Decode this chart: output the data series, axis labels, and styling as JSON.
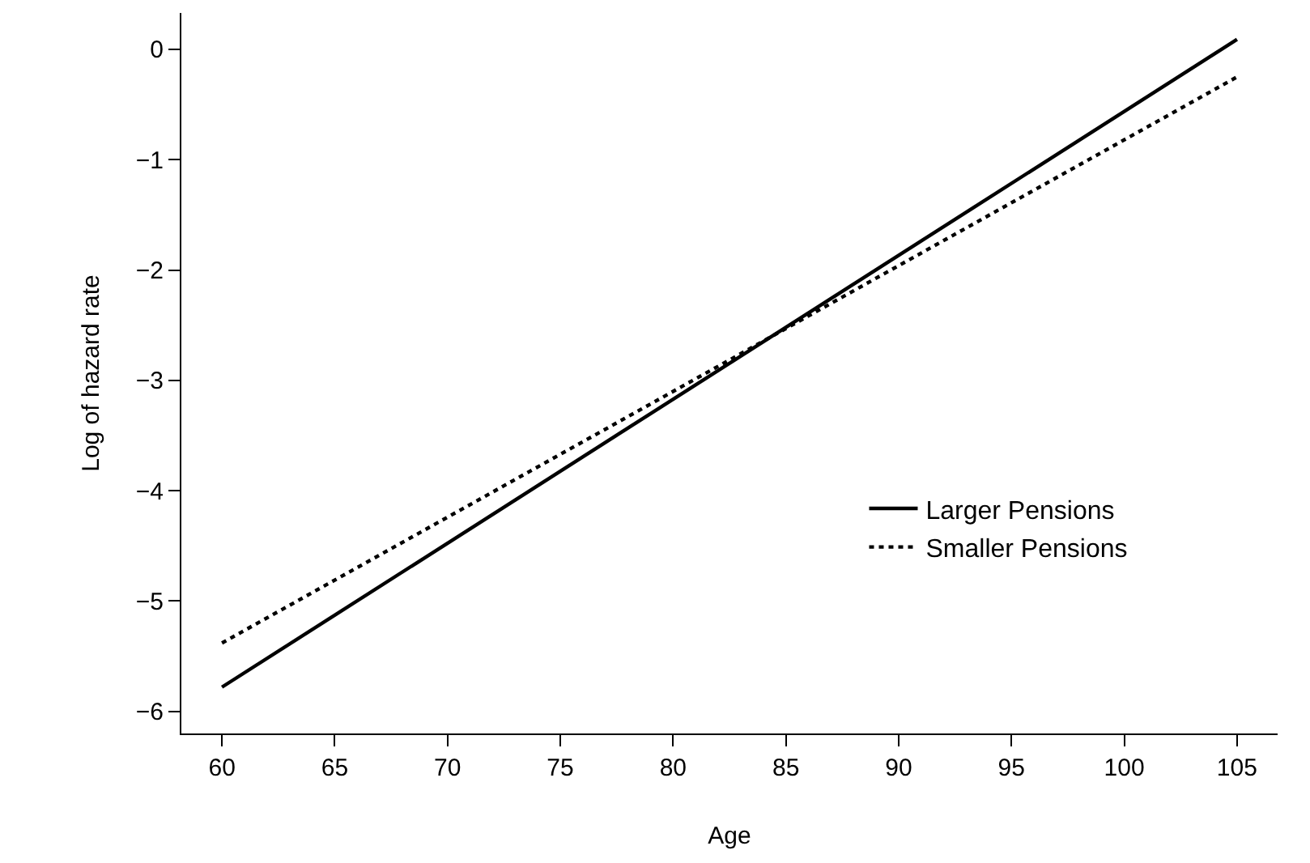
{
  "chart_data": {
    "type": "line",
    "xlabel": "Age",
    "ylabel": "Log of hazard rate",
    "x": [
      60,
      105
    ],
    "series": [
      {
        "name": "Larger Pensions",
        "color": "#000000",
        "values": [
          -5.78,
          0.09
        ],
        "line_style": "solid"
      },
      {
        "name": "Smaller Pensions",
        "color": "#000000",
        "values": [
          -5.38,
          -0.25
        ],
        "line_style": "dotted"
      }
    ],
    "xlim": [
      58.2,
      106.8
    ],
    "ylim": [
      -6.2,
      0.33
    ],
    "xticks": [
      60,
      65,
      70,
      75,
      80,
      85,
      90,
      95,
      100,
      105
    ],
    "yticks": [
      {
        "value": 0,
        "label": "0"
      },
      {
        "value": -1,
        "label": "−1"
      },
      {
        "value": -2,
        "label": "−2"
      },
      {
        "value": -3,
        "label": "−3"
      },
      {
        "value": -4,
        "label": "−4"
      },
      {
        "value": -5,
        "label": "−5"
      },
      {
        "value": -6,
        "label": "−6"
      }
    ],
    "legend": "bottom right",
    "marker": "none"
  }
}
